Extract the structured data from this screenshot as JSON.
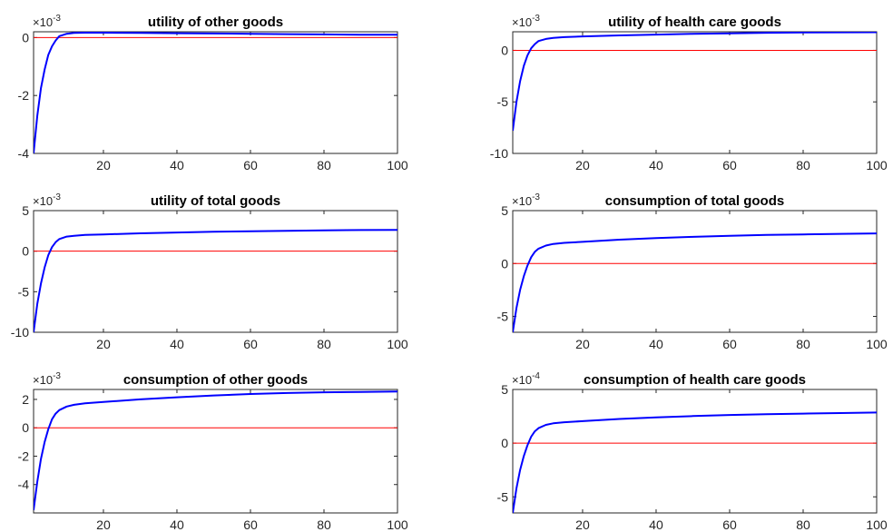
{
  "chart_data": [
    {
      "type": "line",
      "title": "utility of other goods",
      "multiplier": "×10",
      "exponent": "-3",
      "xlim": [
        1,
        100
      ],
      "ylim": [
        -4,
        0.2
      ],
      "xticks": [
        20,
        40,
        60,
        80,
        100
      ],
      "yticks": [
        0,
        -2,
        -4
      ],
      "ytick_labels": [
        "0",
        "-2",
        "-4"
      ],
      "colors": {
        "response": "#0000ff",
        "zero_line": "#ff0000"
      },
      "series": [
        {
          "x": [
            1,
            2,
            3,
            4,
            5,
            6,
            7,
            8,
            10,
            12,
            15,
            20,
            30,
            40,
            50,
            60,
            70,
            80,
            90,
            100
          ],
          "y": [
            -4.0,
            -2.7,
            -1.75,
            -1.1,
            -0.6,
            -0.3,
            -0.1,
            0.05,
            0.13,
            0.16,
            0.17,
            0.17,
            0.16,
            0.15,
            0.14,
            0.13,
            0.12,
            0.11,
            0.1,
            0.1
          ]
        }
      ]
    },
    {
      "type": "line",
      "title": "utility of health care goods",
      "multiplier": "×10",
      "exponent": "-3",
      "xlim": [
        1,
        100
      ],
      "ylim": [
        -10,
        1.8
      ],
      "xticks": [
        20,
        40,
        60,
        80,
        100
      ],
      "yticks": [
        0,
        -5,
        -10
      ],
      "ytick_labels": [
        "0",
        "-5",
        "-10"
      ],
      "colors": {
        "response": "#0000ff",
        "zero_line": "#ff0000"
      },
      "series": [
        {
          "x": [
            1,
            2,
            3,
            4,
            5,
            6,
            7,
            8,
            10,
            12,
            15,
            20,
            30,
            40,
            50,
            60,
            70,
            80,
            90,
            100
          ],
          "y": [
            -7.8,
            -5.0,
            -3.0,
            -1.5,
            -0.5,
            0.2,
            0.6,
            0.9,
            1.1,
            1.2,
            1.28,
            1.35,
            1.45,
            1.53,
            1.6,
            1.65,
            1.7,
            1.73,
            1.75,
            1.76
          ]
        }
      ]
    },
    {
      "type": "line",
      "title": "utility of total goods",
      "multiplier": "×10",
      "exponent": "-3",
      "xlim": [
        1,
        100
      ],
      "ylim": [
        -10,
        5
      ],
      "xticks": [
        20,
        40,
        60,
        80,
        100
      ],
      "yticks": [
        5,
        0,
        -5,
        -10
      ],
      "ytick_labels": [
        "5",
        "0",
        "-5",
        "-10"
      ],
      "colors": {
        "response": "#0000ff",
        "zero_line": "#ff0000"
      },
      "series": [
        {
          "x": [
            1,
            2,
            3,
            4,
            5,
            6,
            7,
            8,
            10,
            12,
            15,
            20,
            30,
            40,
            50,
            60,
            70,
            80,
            90,
            100
          ],
          "y": [
            -10.0,
            -6.5,
            -4.0,
            -2.0,
            -0.5,
            0.5,
            1.1,
            1.5,
            1.8,
            1.9,
            2.0,
            2.07,
            2.2,
            2.3,
            2.4,
            2.45,
            2.52,
            2.57,
            2.6,
            2.62
          ]
        }
      ]
    },
    {
      "type": "line",
      "title": "consumption of total goods",
      "multiplier": "×10",
      "exponent": "-3",
      "xlim": [
        1,
        100
      ],
      "ylim": [
        -6.5,
        5
      ],
      "xticks": [
        20,
        40,
        60,
        80,
        100
      ],
      "yticks": [
        5,
        0,
        -5
      ],
      "ytick_labels": [
        "5",
        "0",
        "-5"
      ],
      "colors": {
        "response": "#0000ff",
        "zero_line": "#ff0000"
      },
      "series": [
        {
          "x": [
            1,
            2,
            3,
            4,
            5,
            6,
            7,
            8,
            10,
            12,
            15,
            20,
            30,
            40,
            50,
            60,
            70,
            80,
            90,
            100
          ],
          "y": [
            -6.5,
            -4.2,
            -2.5,
            -1.2,
            -0.2,
            0.6,
            1.1,
            1.4,
            1.7,
            1.85,
            1.95,
            2.05,
            2.25,
            2.4,
            2.52,
            2.62,
            2.7,
            2.75,
            2.8,
            2.85
          ]
        }
      ]
    },
    {
      "type": "line",
      "title": "consumption of other goods",
      "multiplier": "×10",
      "exponent": "-3",
      "xlim": [
        1,
        100
      ],
      "ylim": [
        -6,
        2.7
      ],
      "xticks": [
        20,
        40,
        60,
        80,
        100
      ],
      "yticks": [
        2,
        0,
        -2,
        -4
      ],
      "ytick_labels": [
        "2",
        "0",
        "-2",
        "-4"
      ],
      "colors": {
        "response": "#0000ff",
        "zero_line": "#ff0000"
      },
      "series": [
        {
          "x": [
            1,
            2,
            3,
            4,
            5,
            6,
            7,
            8,
            10,
            12,
            15,
            20,
            30,
            40,
            50,
            60,
            70,
            80,
            90,
            100
          ],
          "y": [
            -5.8,
            -3.8,
            -2.2,
            -1.0,
            -0.1,
            0.6,
            1.0,
            1.25,
            1.5,
            1.62,
            1.72,
            1.82,
            2.0,
            2.15,
            2.28,
            2.38,
            2.45,
            2.5,
            2.53,
            2.55
          ]
        }
      ]
    },
    {
      "type": "line",
      "title": "consumption of health care goods",
      "multiplier": "×10",
      "exponent": "-4",
      "xlim": [
        1,
        100
      ],
      "ylim": [
        -6.5,
        5
      ],
      "xticks": [
        20,
        40,
        60,
        80,
        100
      ],
      "yticks": [
        5,
        0,
        -5
      ],
      "ytick_labels": [
        "5",
        "0",
        "-5"
      ],
      "colors": {
        "response": "#0000ff",
        "zero_line": "#ff0000"
      },
      "series": [
        {
          "x": [
            1,
            2,
            3,
            4,
            5,
            6,
            7,
            8,
            10,
            12,
            15,
            20,
            30,
            40,
            50,
            60,
            70,
            80,
            90,
            100
          ],
          "y": [
            -6.5,
            -4.2,
            -2.5,
            -1.2,
            -0.2,
            0.6,
            1.1,
            1.4,
            1.7,
            1.85,
            1.95,
            2.05,
            2.25,
            2.4,
            2.52,
            2.62,
            2.7,
            2.75,
            2.8,
            2.85
          ]
        }
      ]
    }
  ]
}
